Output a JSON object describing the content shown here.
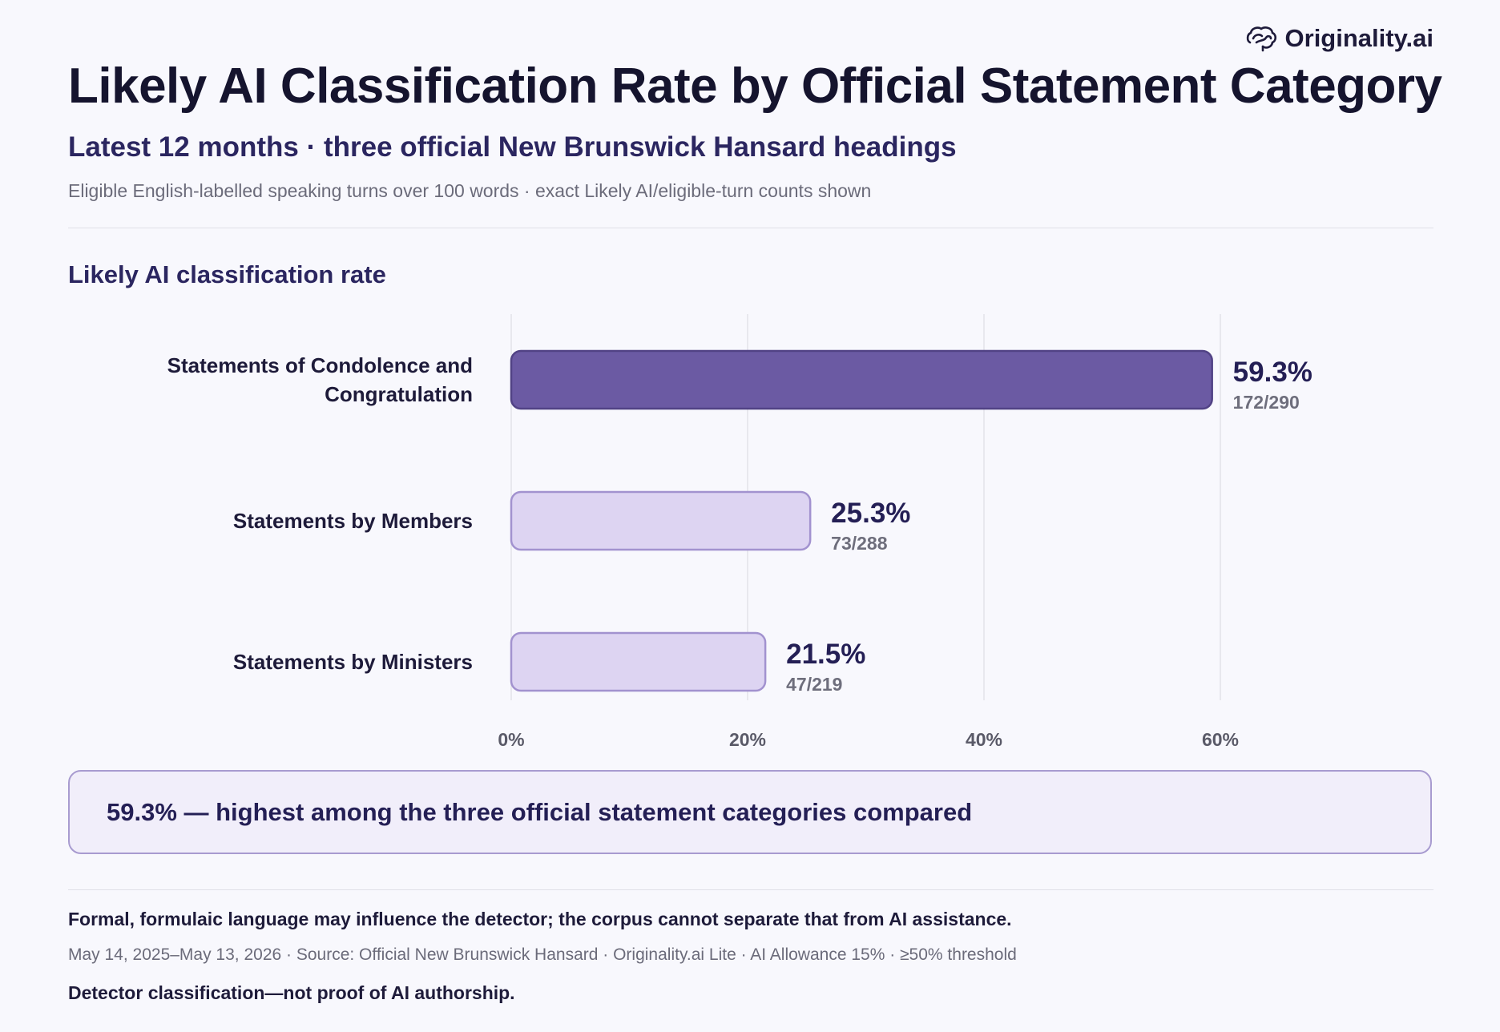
{
  "brand": {
    "name": "Originality.ai",
    "icon": "brain-icon",
    "color": "#1e1b3a"
  },
  "header": {
    "title": "Likely AI Classification Rate by Official Statement Category",
    "subtitle": "Latest 12 months · three official New Brunswick Hansard headings",
    "note": "Eligible English-labelled speaking turns over 100 words · exact Likely AI/eligible-turn counts shown"
  },
  "chart_data": {
    "type": "bar",
    "orientation": "horizontal",
    "title": "Likely AI classification rate",
    "categories": [
      "Statements of Condolence and Congratulation",
      "Statements by Members",
      "Statements by Ministers"
    ],
    "values": [
      59.3,
      25.3,
      21.5
    ],
    "value_labels": [
      "59.3%",
      "25.3%",
      "21.5%"
    ],
    "count_labels": [
      "172/290",
      "73/288",
      "47/219"
    ],
    "xlim": [
      0,
      60
    ],
    "x_ticks": [
      "0%",
      "20%",
      "40%",
      "60%"
    ],
    "grid": true,
    "highlight_index": 0,
    "colors": {
      "highlight_fill": "#6b5aa3",
      "highlight_stroke": "#514285",
      "base_fill": "#ddd4f2",
      "base_stroke": "#a292cf",
      "grid": "#e2e2ea",
      "label": "#1e1b3a",
      "value": "#241f55",
      "count": "#6e6e7c",
      "tick": "#5a5a68"
    }
  },
  "callout": {
    "text": "59.3% — highest among the three official statement categories compared"
  },
  "footer": {
    "caveat": "Formal, formulaic language may influence the detector; the corpus cannot separate that from AI assistance.",
    "meta": "May 14, 2025–May 13, 2026 · Source: Official New Brunswick Hansard · Originality.ai Lite · AI Allowance 15% · ≥50% threshold",
    "disclaimer": "Detector classification—not proof of AI authorship."
  }
}
